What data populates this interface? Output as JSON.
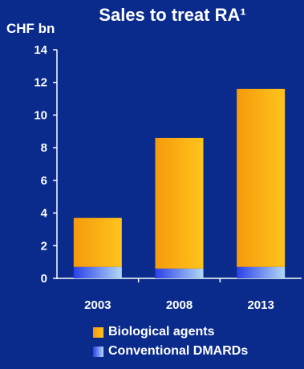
{
  "chart_data": {
    "type": "bar",
    "stacked": true,
    "title": "Sales to treat RA¹",
    "ylabel": "CHF bn",
    "xlabel": "",
    "ylim": [
      0,
      14
    ],
    "yticks": [
      "0",
      "2",
      "4",
      "6",
      "8",
      "10",
      "12",
      "14"
    ],
    "categories": [
      "2003",
      "2008",
      "2013"
    ],
    "series": [
      {
        "name": "Conventional DMARDs",
        "values": [
          0.7,
          0.6,
          0.7
        ],
        "color": "#2d42e6",
        "color_light": "#a8d0f5"
      },
      {
        "name": "Biological agents",
        "values": [
          3.0,
          8.0,
          10.9
        ],
        "color": "#f7a010",
        "color_light": "#ffc21a"
      }
    ],
    "legend_position": "bottom",
    "legend_order": [
      "Biological agents",
      "Conventional DMARDs"
    ],
    "grid": false
  }
}
